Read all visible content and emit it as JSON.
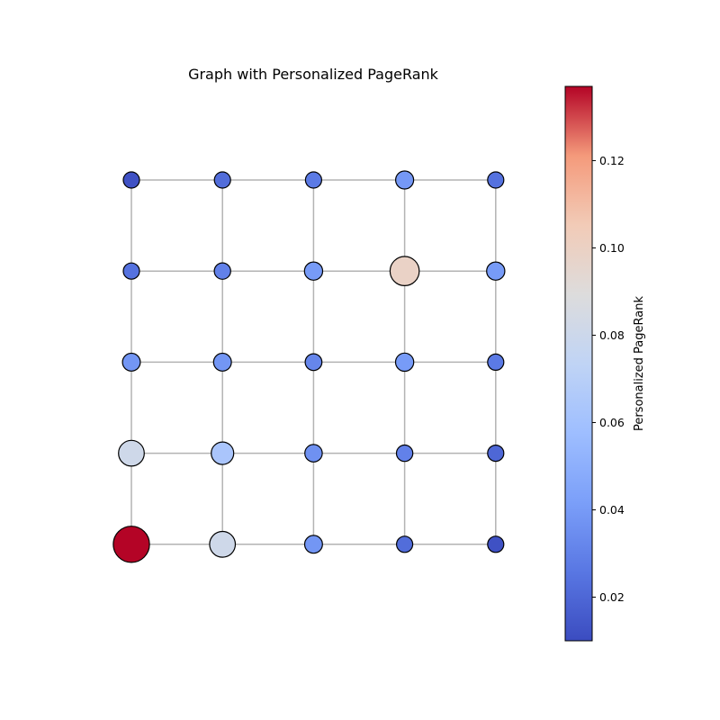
{
  "chart_data": {
    "type": "network-graph",
    "title": "Graph with Personalized PageRank",
    "layout": "grid",
    "rows": 5,
    "cols": 5,
    "nodes": [
      {
        "row": 0,
        "col": 0,
        "value": 0.012
      },
      {
        "row": 0,
        "col": 1,
        "value": 0.022
      },
      {
        "row": 0,
        "col": 2,
        "value": 0.027
      },
      {
        "row": 0,
        "col": 3,
        "value": 0.039
      },
      {
        "row": 0,
        "col": 4,
        "value": 0.024
      },
      {
        "row": 1,
        "col": 0,
        "value": 0.024
      },
      {
        "row": 1,
        "col": 1,
        "value": 0.03
      },
      {
        "row": 1,
        "col": 2,
        "value": 0.04
      },
      {
        "row": 1,
        "col": 3,
        "value": 0.099
      },
      {
        "row": 1,
        "col": 4,
        "value": 0.04
      },
      {
        "row": 2,
        "col": 0,
        "value": 0.038
      },
      {
        "row": 2,
        "col": 1,
        "value": 0.038
      },
      {
        "row": 2,
        "col": 2,
        "value": 0.032
      },
      {
        "row": 2,
        "col": 3,
        "value": 0.04
      },
      {
        "row": 2,
        "col": 4,
        "value": 0.027
      },
      {
        "row": 3,
        "col": 0,
        "value": 0.081
      },
      {
        "row": 3,
        "col": 1,
        "value": 0.063
      },
      {
        "row": 3,
        "col": 2,
        "value": 0.036
      },
      {
        "row": 3,
        "col": 3,
        "value": 0.03
      },
      {
        "row": 3,
        "col": 4,
        "value": 0.02
      },
      {
        "row": 4,
        "col": 0,
        "value": 0.137
      },
      {
        "row": 4,
        "col": 1,
        "value": 0.081
      },
      {
        "row": 4,
        "col": 2,
        "value": 0.038
      },
      {
        "row": 4,
        "col": 3,
        "value": 0.022
      },
      {
        "row": 4,
        "col": 4,
        "value": 0.012
      }
    ],
    "colorbar": {
      "label": "Personalized PageRank",
      "colormap": "coolwarm",
      "range": [
        0.01,
        0.137
      ],
      "ticks": [
        0.02,
        0.04,
        0.06,
        0.08,
        0.1,
        0.12
      ],
      "tick_labels": [
        "0.02",
        "0.04",
        "0.06",
        "0.08",
        "0.10",
        "0.12"
      ]
    },
    "edge_color": "#b3b3b3",
    "node_edge_color": "#000000"
  }
}
